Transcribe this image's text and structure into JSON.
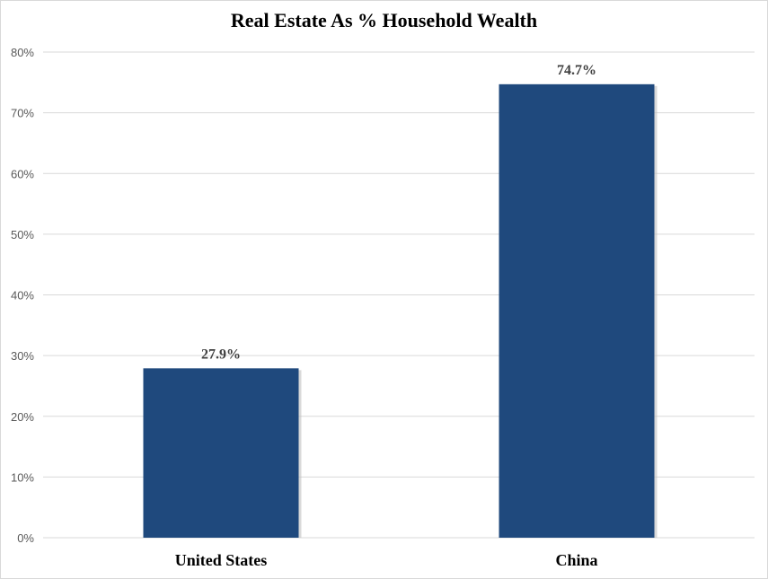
{
  "chart_data": {
    "type": "bar",
    "title": "Real Estate As % Household Wealth",
    "categories": [
      "United States",
      "China"
    ],
    "values": [
      27.9,
      74.7
    ],
    "data_labels": [
      "27.9%",
      "74.7%"
    ],
    "ylim": [
      0,
      80
    ],
    "yticks": [
      0,
      10,
      20,
      30,
      40,
      50,
      60,
      70,
      80
    ],
    "ytick_labels": [
      "0%",
      "10%",
      "20%",
      "30%",
      "40%",
      "50%",
      "60%",
      "70%",
      "80%"
    ],
    "xlabel": "",
    "ylabel": "",
    "grid": true,
    "legend": "none",
    "bar_color": "#1f497d",
    "gridline_color": "#d9d9d9"
  }
}
